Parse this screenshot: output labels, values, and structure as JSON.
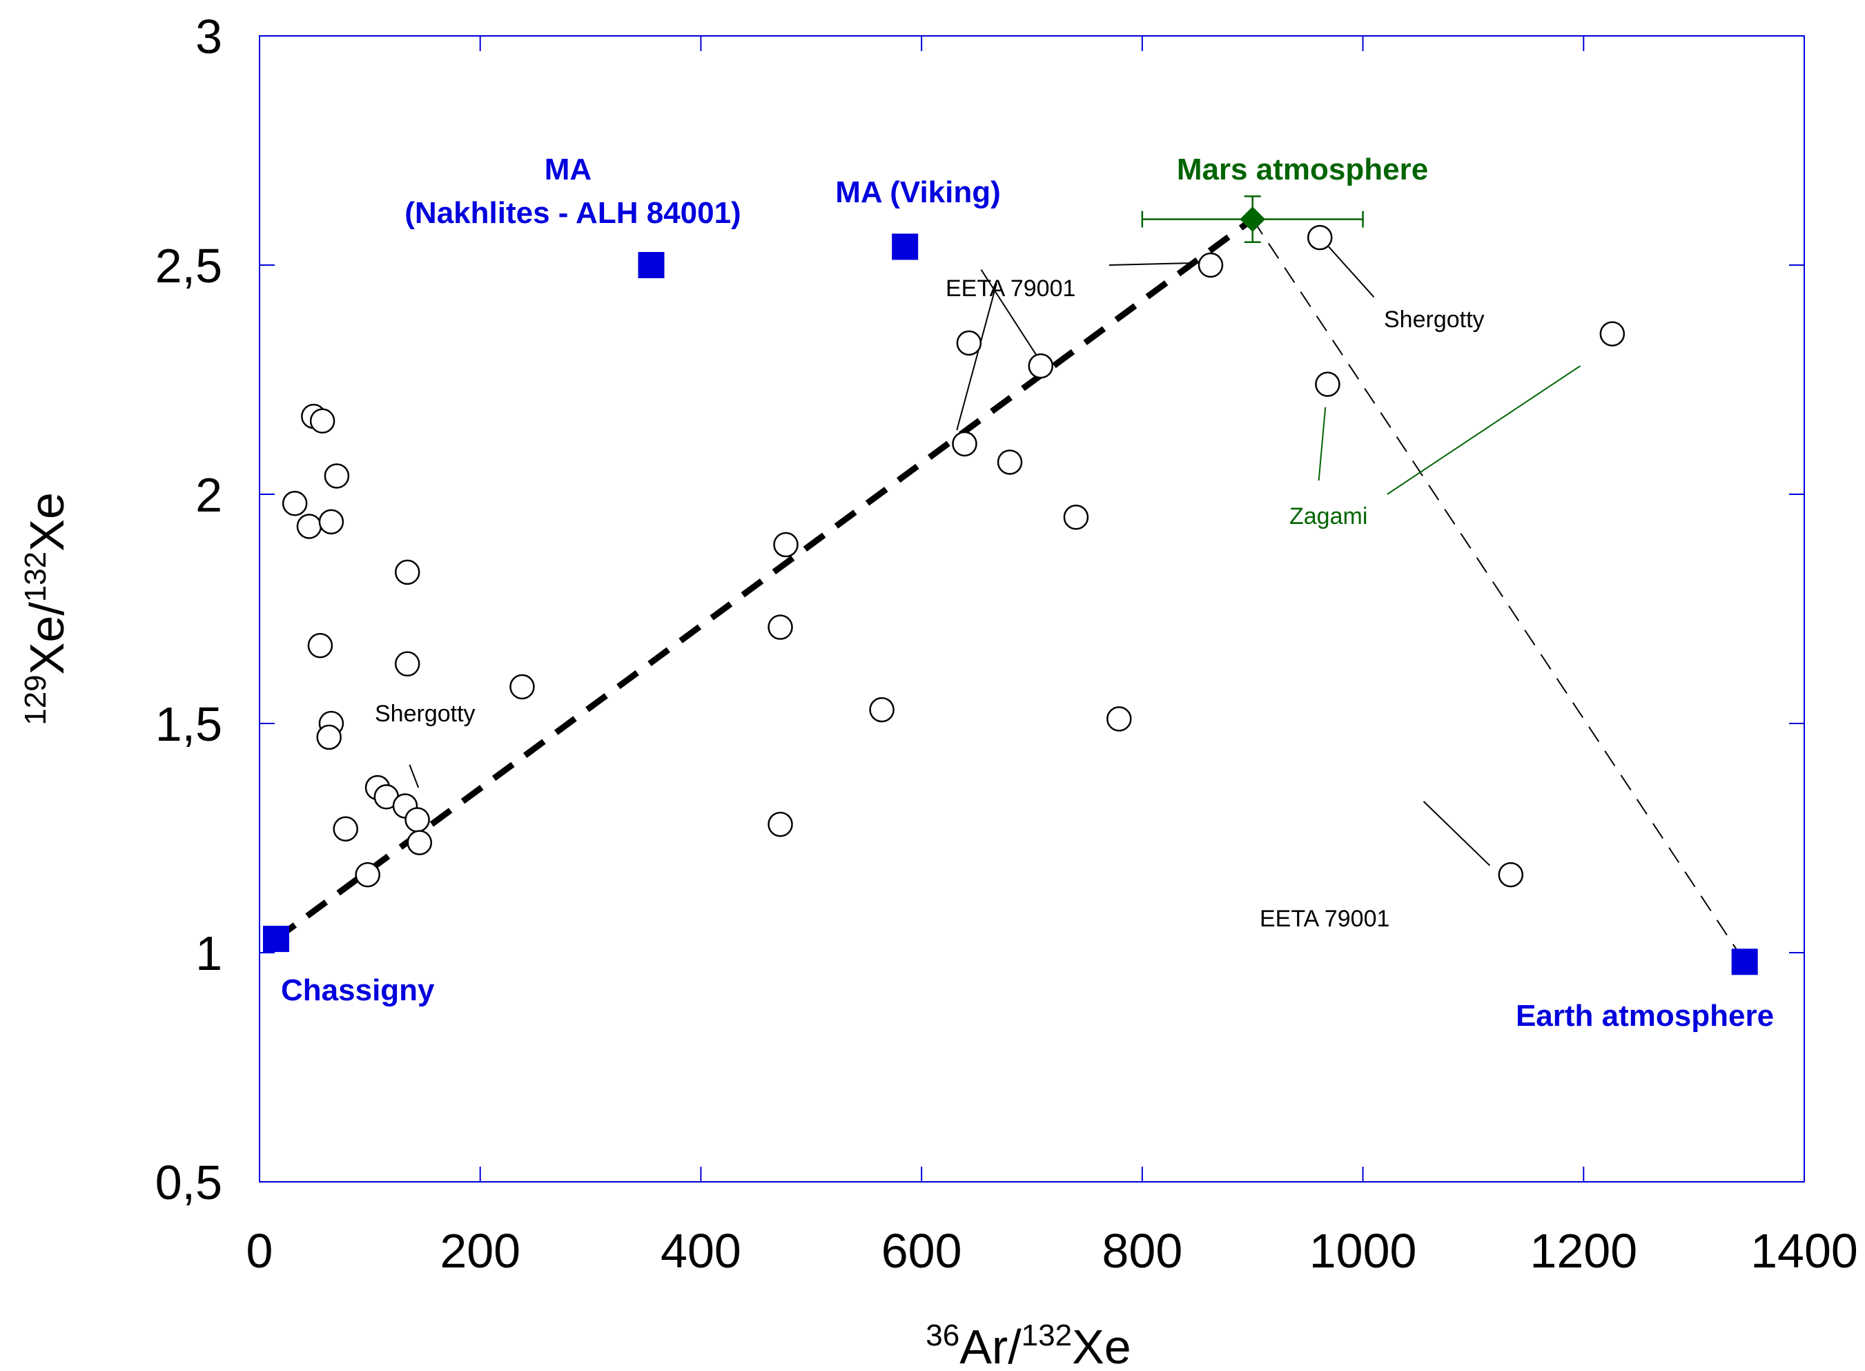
{
  "chart_data": {
    "type": "scatter",
    "xlabel": {
      "sup1": "36",
      "base1": "Ar/",
      "sup2": "132",
      "base2": "Xe"
    },
    "ylabel": {
      "sup1": "129",
      "base1": "Xe/",
      "sup2": "132",
      "base2": "Xe"
    },
    "xlim": [
      0,
      1400
    ],
    "ylim": [
      0.5,
      3
    ],
    "x_ticks": [
      0,
      200,
      400,
      600,
      800,
      1000,
      1200,
      1400
    ],
    "x_tick_labels": [
      "0",
      "200",
      "400",
      "600",
      "800",
      "1000",
      "1200",
      "1400"
    ],
    "y_ticks": [
      0.5,
      1,
      1.5,
      2,
      2.5,
      3
    ],
    "y_tick_labels": [
      "0,5",
      "1",
      "1,5",
      "2",
      "2,5",
      "3"
    ],
    "colors": {
      "axis": "#0000dd",
      "blue": "#0000dd",
      "green": "#006400",
      "black": "#000000"
    },
    "series": [
      {
        "name": "meteorites",
        "marker": "open-circle",
        "points": [
          {
            "x": 49,
            "y": 2.17
          },
          {
            "x": 57,
            "y": 2.16
          },
          {
            "x": 70,
            "y": 2.04
          },
          {
            "x": 32,
            "y": 1.98
          },
          {
            "x": 45,
            "y": 1.93
          },
          {
            "x": 65,
            "y": 1.94
          },
          {
            "x": 134,
            "y": 1.83
          },
          {
            "x": 134,
            "y": 1.63
          },
          {
            "x": 55,
            "y": 1.67
          },
          {
            "x": 238,
            "y": 1.58
          },
          {
            "x": 65,
            "y": 1.5
          },
          {
            "x": 63,
            "y": 1.47
          },
          {
            "x": 107,
            "y": 1.36
          },
          {
            "x": 115,
            "y": 1.34
          },
          {
            "x": 132,
            "y": 1.32
          },
          {
            "x": 143,
            "y": 1.29
          },
          {
            "x": 78,
            "y": 1.27
          },
          {
            "x": 145,
            "y": 1.24
          },
          {
            "x": 98,
            "y": 1.17
          },
          {
            "x": 477,
            "y": 1.89
          },
          {
            "x": 472,
            "y": 1.71
          },
          {
            "x": 472,
            "y": 1.28
          },
          {
            "x": 564,
            "y": 1.53
          },
          {
            "x": 643,
            "y": 2.33
          },
          {
            "x": 639,
            "y": 2.11
          },
          {
            "x": 708,
            "y": 2.28
          },
          {
            "x": 680,
            "y": 2.07
          },
          {
            "x": 740,
            "y": 1.95
          },
          {
            "x": 779,
            "y": 1.51
          },
          {
            "x": 862,
            "y": 2.5
          },
          {
            "x": 961,
            "y": 2.56
          },
          {
            "x": 968,
            "y": 2.24
          },
          {
            "x": 1226,
            "y": 2.35
          },
          {
            "x": 1134,
            "y": 1.17
          }
        ]
      },
      {
        "name": "end-members",
        "marker": "filled-square",
        "points": [
          {
            "x": 15,
            "y": 1.03,
            "label": "Chassigny"
          },
          {
            "x": 355,
            "y": 2.5,
            "label": "MA (Nakhlites - ALH 84001)"
          },
          {
            "x": 585,
            "y": 2.54,
            "label": "MA (Viking)"
          },
          {
            "x": 1346,
            "y": 0.98,
            "label": "Earth atmosphere"
          }
        ]
      },
      {
        "name": "Mars atmosphere",
        "marker": "filled-diamond",
        "points": [
          {
            "x": 900,
            "y": 2.6,
            "xerr": [
              800,
              1000
            ],
            "yerr": [
              2.55,
              2.65
            ]
          }
        ]
      }
    ],
    "lines": [
      {
        "name": "mixing line Chassigny-Mars",
        "style": "bold-dashed",
        "from": {
          "x": 15,
          "y": 1.03
        },
        "to": {
          "x": 900,
          "y": 2.6
        }
      },
      {
        "name": "mixing line Mars-Earth",
        "style": "thin-dashed",
        "from": {
          "x": 900,
          "y": 2.6
        },
        "to": {
          "x": 1346,
          "y": 0.98
        }
      }
    ],
    "annotations": {
      "ma_nakhlites_line1": "MA",
      "ma_nakhlites_line2": "(Nakhlites - ALH 84001)",
      "ma_viking": "MA (Viking)",
      "mars_atmosphere": "Mars atmosphere",
      "chassigny": "Chassigny",
      "earth_atmosphere": "Earth atmosphere",
      "eeta_top": "EETA 79001",
      "eeta_bottom": "EETA 79001",
      "shergotty_left": "Shergotty",
      "shergotty_right": "Shergotty",
      "zagami": "Zagami"
    }
  }
}
